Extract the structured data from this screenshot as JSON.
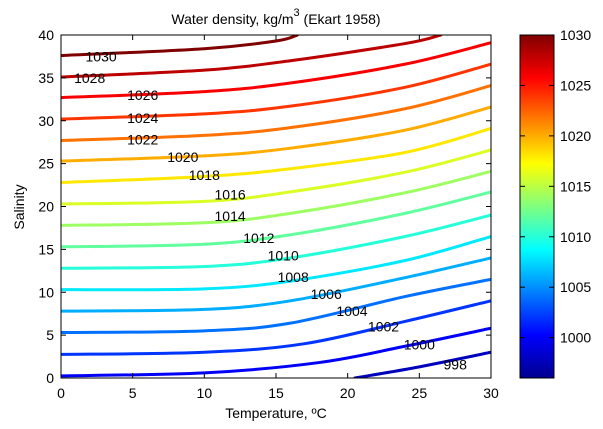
{
  "chart_data": {
    "type": "contour",
    "title": "Water density, kg/m",
    "title_superscript": "3",
    "title_suffix": " (Ekart 1958)",
    "xlabel": "Temperature, ºC",
    "ylabel": "Salinity",
    "xlim": [
      0,
      30
    ],
    "ylim": [
      0,
      40
    ],
    "xticks": [
      "0",
      "5",
      "10",
      "15",
      "20",
      "25",
      "30"
    ],
    "yticks": [
      "0",
      "5",
      "10",
      "15",
      "20",
      "25",
      "30",
      "35",
      "40"
    ],
    "colorbar": {
      "colormap": "jet",
      "range": [
        996,
        1030
      ],
      "ticks": [
        "1000",
        "1005",
        "1010",
        "1015",
        "1020",
        "1025",
        "1030"
      ]
    },
    "contours": [
      {
        "level": 998,
        "label": "998",
        "label_at": [
          27.5,
          1.6
        ],
        "points": [
          [
            20.5,
            0
          ],
          [
            25,
            1.3
          ],
          [
            30,
            3.0
          ]
        ]
      },
      {
        "level": 1000,
        "label": "1000",
        "label_at": [
          25.0,
          3.9
        ],
        "points": [
          [
            0,
            0.25
          ],
          [
            10,
            0.6
          ],
          [
            18,
            1.8
          ],
          [
            24,
            3.7
          ],
          [
            30,
            5.8
          ]
        ]
      },
      {
        "level": 1002,
        "label": "1002",
        "label_at": [
          22.5,
          6.0
        ],
        "points": [
          [
            0,
            2.75
          ],
          [
            10,
            3.0
          ],
          [
            17,
            4.0
          ],
          [
            24,
            6.6
          ],
          [
            30,
            9.0
          ]
        ]
      },
      {
        "level": 1004,
        "label": "1004",
        "label_at": [
          20.3,
          7.8
        ],
        "points": [
          [
            0,
            5.3
          ],
          [
            10,
            5.5
          ],
          [
            16,
            6.4
          ],
          [
            24,
            9.5
          ],
          [
            30,
            11.5
          ]
        ]
      },
      {
        "level": 1006,
        "label": "1006",
        "label_at": [
          18.5,
          9.8
        ],
        "points": [
          [
            0,
            7.8
          ],
          [
            10,
            8.0
          ],
          [
            16,
            9.0
          ],
          [
            24,
            11.7
          ],
          [
            30,
            14.0
          ]
        ]
      },
      {
        "level": 1008,
        "label": "1008",
        "label_at": [
          16.2,
          11.8
        ],
        "points": [
          [
            0,
            10.3
          ],
          [
            10,
            10.4
          ],
          [
            16,
            11.3
          ],
          [
            24,
            13.7
          ],
          [
            30,
            16.5
          ]
        ]
      },
      {
        "level": 1010,
        "label": "1010",
        "label_at": [
          15.5,
          14.3
        ],
        "points": [
          [
            0,
            12.8
          ],
          [
            10,
            13.0
          ],
          [
            16,
            14.0
          ],
          [
            24,
            16.5
          ],
          [
            30,
            19.0
          ]
        ]
      },
      {
        "level": 1012,
        "label": "1012",
        "label_at": [
          13.8,
          16.3
        ],
        "points": [
          [
            0,
            15.3
          ],
          [
            10,
            15.6
          ],
          [
            16,
            16.7
          ],
          [
            24,
            19.2
          ],
          [
            30,
            21.7
          ]
        ]
      },
      {
        "level": 1014,
        "label": "1014",
        "label_at": [
          11.8,
          18.9
        ],
        "points": [
          [
            0,
            17.8
          ],
          [
            10,
            18.1
          ],
          [
            16,
            19.2
          ],
          [
            24,
            21.6
          ],
          [
            30,
            24.1
          ]
        ]
      },
      {
        "level": 1016,
        "label": "1016",
        "label_at": [
          11.8,
          21.4
        ],
        "points": [
          [
            0,
            20.3
          ],
          [
            10,
            20.6
          ],
          [
            16,
            21.7
          ],
          [
            24,
            24.0
          ],
          [
            30,
            26.6
          ]
        ]
      },
      {
        "level": 1018,
        "label": "1018",
        "label_at": [
          10.0,
          23.7
        ],
        "points": [
          [
            0,
            22.8
          ],
          [
            10,
            23.5
          ],
          [
            16,
            24.4
          ],
          [
            24,
            26.3
          ],
          [
            30,
            29.1
          ]
        ]
      },
      {
        "level": 1020,
        "label": "1020",
        "label_at": [
          8.5,
          25.8
        ],
        "points": [
          [
            0,
            25.3
          ],
          [
            10,
            25.9
          ],
          [
            16,
            26.8
          ],
          [
            24,
            28.9
          ],
          [
            30,
            31.6
          ]
        ]
      },
      {
        "level": 1022,
        "label": "1022",
        "label_at": [
          5.7,
          27.8
        ],
        "points": [
          [
            0,
            27.7
          ],
          [
            10,
            28.3
          ],
          [
            16,
            29.2
          ],
          [
            24,
            31.4
          ],
          [
            30,
            34.1
          ]
        ]
      },
      {
        "level": 1024,
        "label": "1024",
        "label_at": [
          5.7,
          30.3
        ],
        "points": [
          [
            0,
            30.2
          ],
          [
            10,
            30.8
          ],
          [
            16,
            31.7
          ],
          [
            24,
            33.9
          ],
          [
            30,
            36.6
          ]
        ]
      },
      {
        "level": 1026,
        "label": "1026",
        "label_at": [
          5.7,
          33.0
        ],
        "points": [
          [
            0,
            32.7
          ],
          [
            10,
            33.4
          ],
          [
            16,
            34.4
          ],
          [
            24,
            36.6
          ],
          [
            30,
            39.1
          ]
        ]
      },
      {
        "level": 1028,
        "label": "1028",
        "label_at": [
          2.0,
          35.0
        ],
        "points": [
          [
            0,
            35.1
          ],
          [
            10,
            35.9
          ],
          [
            16,
            37.0
          ],
          [
            24,
            39.0
          ],
          [
            26.5,
            40
          ]
        ]
      },
      {
        "level": 1030,
        "label": "1030",
        "label_at": [
          2.8,
          37.5
        ],
        "points": [
          [
            0,
            37.6
          ],
          [
            10,
            38.4
          ],
          [
            15,
            39.3
          ],
          [
            16.5,
            40
          ]
        ]
      }
    ]
  }
}
